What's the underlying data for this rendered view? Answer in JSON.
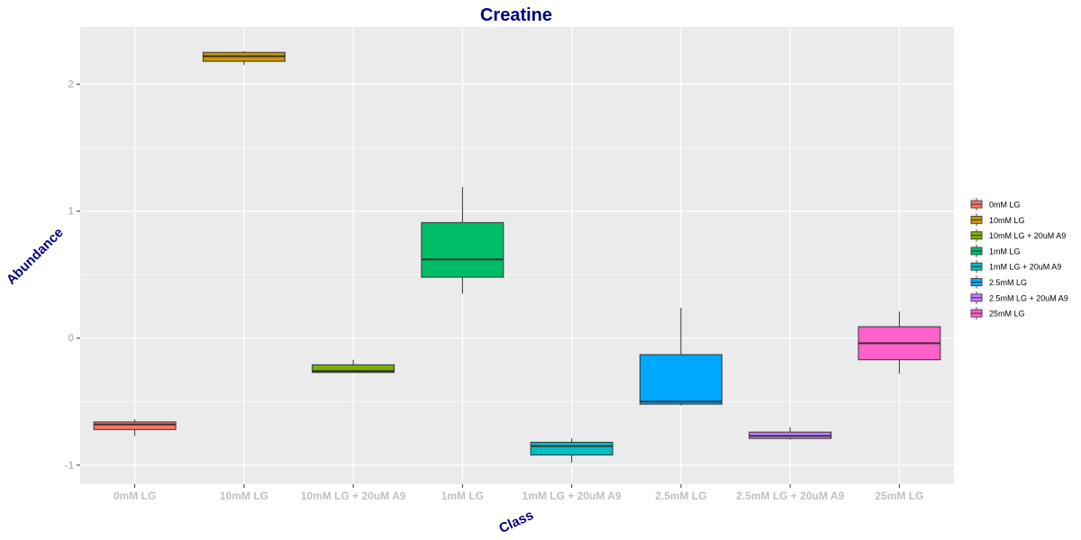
{
  "chart_data": {
    "type": "boxplot",
    "title": "Creatine",
    "xlabel": "Class",
    "ylabel": "Abundance",
    "ylim": [
      -1.15,
      2.45
    ],
    "yticks": [
      -1,
      0,
      1,
      2
    ],
    "grid": true,
    "legend_position": "right",
    "categories": [
      "0mM LG",
      "10mM LG",
      "10mM LG + 20uM A9",
      "1mM LG",
      "1mM LG + 20uM A9",
      "2.5mM LG",
      "2.5mM LG + 20uM A9",
      "25mM LG"
    ],
    "colors": [
      "#F8766D",
      "#CD9600",
      "#7CAE00",
      "#00BE67",
      "#00BFC4",
      "#00A9FF",
      "#C77CFF",
      "#FF61CC"
    ],
    "boxes": [
      {
        "name": "0mM LG",
        "min": -0.77,
        "q1": -0.72,
        "median": -0.68,
        "q3": -0.66,
        "max": -0.64
      },
      {
        "name": "10mM LG",
        "min": 2.15,
        "q1": 2.18,
        "median": 2.22,
        "q3": 2.25,
        "max": 2.26
      },
      {
        "name": "10mM LG + 20uM A9",
        "min": -0.27,
        "q1": -0.27,
        "median": -0.26,
        "q3": -0.21,
        "max": -0.17
      },
      {
        "name": "1mM LG",
        "min": 0.35,
        "q1": 0.48,
        "median": 0.62,
        "q3": 0.91,
        "max": 1.19
      },
      {
        "name": "1mM LG + 20uM A9",
        "min": -0.98,
        "q1": -0.92,
        "median": -0.85,
        "q3": -0.82,
        "max": -0.79
      },
      {
        "name": "2.5mM LG",
        "min": -0.53,
        "q1": -0.52,
        "median": -0.5,
        "q3": -0.13,
        "max": 0.24
      },
      {
        "name": "2.5mM LG + 20uM A9",
        "min": -0.8,
        "q1": -0.79,
        "median": -0.77,
        "q3": -0.74,
        "max": -0.7
      },
      {
        "name": "25mM LG",
        "min": -0.28,
        "q1": -0.17,
        "median": -0.04,
        "q3": 0.09,
        "max": 0.21
      }
    ]
  }
}
